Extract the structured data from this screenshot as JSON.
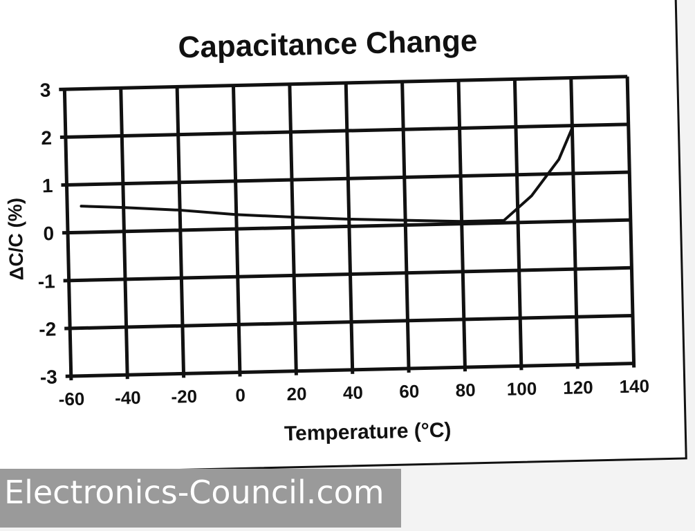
{
  "chart_data": {
    "type": "line",
    "title": "Capacitance Change",
    "xlabel": "Temperature (°C)",
    "ylabel": "ΔC/C (%)",
    "xlim": [
      -60,
      140
    ],
    "ylim": [
      -3,
      3
    ],
    "x_ticks": [
      -60,
      -40,
      -20,
      0,
      20,
      40,
      60,
      80,
      100,
      120,
      140
    ],
    "y_ticks": [
      3,
      2,
      1,
      0,
      -1,
      -2,
      -3
    ],
    "x_tick_labels": [
      "-60",
      "-40",
      "-20",
      "0",
      "20",
      "40",
      "60",
      "80",
      "100",
      "120",
      "140"
    ],
    "y_tick_labels": [
      "3",
      "2",
      "1",
      "0",
      "-1",
      "-2",
      "-3"
    ],
    "grid": true,
    "legend": "none",
    "series": [
      {
        "color": "#111111",
        "points": [
          {
            "x": -55,
            "y": 0.55
          },
          {
            "x": -40,
            "y": 0.5
          },
          {
            "x": -20,
            "y": 0.42
          },
          {
            "x": 0,
            "y": 0.3
          },
          {
            "x": 20,
            "y": 0.22
          },
          {
            "x": 40,
            "y": 0.15
          },
          {
            "x": 60,
            "y": 0.1
          },
          {
            "x": 80,
            "y": 0.05
          },
          {
            "x": 95,
            "y": 0.05
          },
          {
            "x": 105,
            "y": 0.55
          },
          {
            "x": 115,
            "y": 1.3
          },
          {
            "x": 120,
            "y": 1.95
          }
        ]
      }
    ]
  },
  "watermark": {
    "text": "Electronics-Council.com"
  },
  "colors": {
    "ink": "#111111",
    "paper": "#ffffff",
    "watermark_band": "#9a9a9a"
  }
}
